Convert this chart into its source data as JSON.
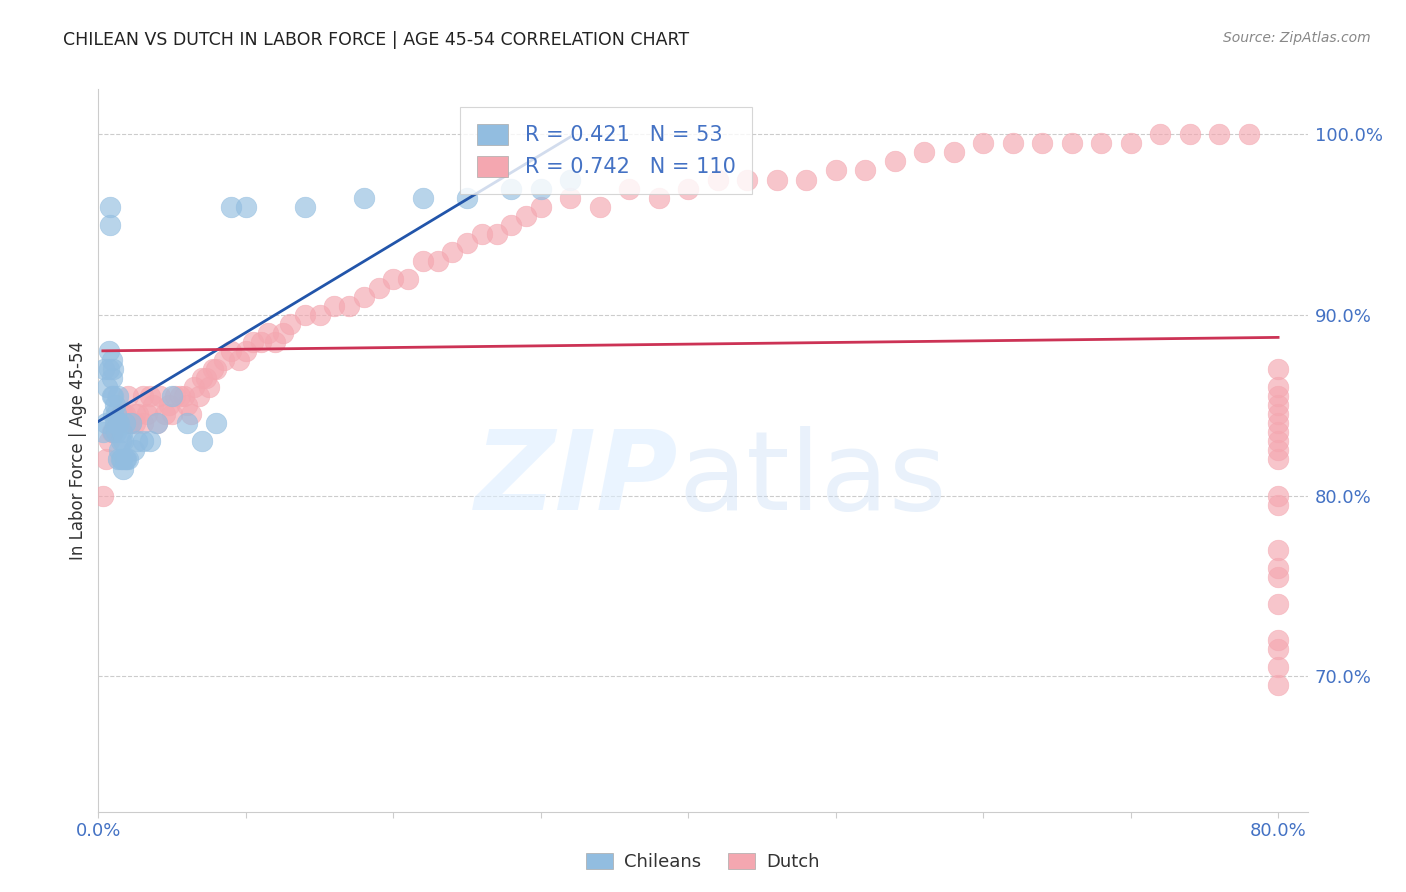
{
  "title": "CHILEAN VS DUTCH IN LABOR FORCE | AGE 45-54 CORRELATION CHART",
  "source": "Source: ZipAtlas.com",
  "ylabel": "In Labor Force | Age 45-54",
  "legend_chileans": "Chileans",
  "legend_dutch": "Dutch",
  "r_chileans": 0.421,
  "n_chileans": 53,
  "r_dutch": 0.742,
  "n_dutch": 110,
  "xlim": [
    0.0,
    0.82
  ],
  "ylim": [
    0.625,
    1.025
  ],
  "yticks_right": [
    0.7,
    0.8,
    0.9,
    1.0
  ],
  "color_chileans": "#92bde0",
  "color_dutch": "#f4a7b0",
  "color_line_chileans": "#2255aa",
  "color_line_dutch": "#cc3355",
  "bg_color": "#ffffff",
  "text_blue": "#4472c4",
  "title_color": "#222222",
  "source_color": "#888888",
  "grid_color": "#cccccc",
  "ch_x": [
    0.003,
    0.004,
    0.005,
    0.006,
    0.007,
    0.007,
    0.008,
    0.008,
    0.009,
    0.009,
    0.009,
    0.01,
    0.01,
    0.01,
    0.01,
    0.011,
    0.011,
    0.012,
    0.012,
    0.013,
    0.013,
    0.013,
    0.014,
    0.014,
    0.015,
    0.015,
    0.016,
    0.016,
    0.017,
    0.017,
    0.018,
    0.018,
    0.019,
    0.02,
    0.022,
    0.024,
    0.026,
    0.03,
    0.035,
    0.04,
    0.05,
    0.06,
    0.07,
    0.08,
    0.09,
    0.1,
    0.14,
    0.18,
    0.22,
    0.25,
    0.28,
    0.3,
    0.32
  ],
  "ch_y": [
    0.835,
    0.87,
    0.84,
    0.86,
    0.87,
    0.88,
    0.95,
    0.96,
    0.855,
    0.865,
    0.875,
    0.835,
    0.845,
    0.855,
    0.87,
    0.84,
    0.85,
    0.835,
    0.845,
    0.82,
    0.84,
    0.855,
    0.825,
    0.84,
    0.82,
    0.83,
    0.82,
    0.835,
    0.815,
    0.83,
    0.82,
    0.84,
    0.82,
    0.82,
    0.84,
    0.825,
    0.83,
    0.83,
    0.83,
    0.84,
    0.855,
    0.84,
    0.83,
    0.84,
    0.96,
    0.96,
    0.96,
    0.965,
    0.965,
    0.965,
    0.97,
    0.97,
    0.975
  ],
  "du_x": [
    0.003,
    0.005,
    0.007,
    0.009,
    0.01,
    0.012,
    0.013,
    0.015,
    0.015,
    0.017,
    0.018,
    0.02,
    0.02,
    0.022,
    0.025,
    0.025,
    0.027,
    0.03,
    0.03,
    0.033,
    0.035,
    0.037,
    0.04,
    0.042,
    0.045,
    0.048,
    0.05,
    0.052,
    0.055,
    0.058,
    0.06,
    0.063,
    0.065,
    0.068,
    0.07,
    0.073,
    0.075,
    0.078,
    0.08,
    0.085,
    0.09,
    0.095,
    0.1,
    0.105,
    0.11,
    0.115,
    0.12,
    0.125,
    0.13,
    0.14,
    0.15,
    0.16,
    0.17,
    0.18,
    0.19,
    0.2,
    0.21,
    0.22,
    0.23,
    0.24,
    0.25,
    0.26,
    0.27,
    0.28,
    0.29,
    0.3,
    0.32,
    0.34,
    0.36,
    0.38,
    0.4,
    0.42,
    0.44,
    0.46,
    0.48,
    0.5,
    0.52,
    0.54,
    0.56,
    0.58,
    0.6,
    0.62,
    0.64,
    0.66,
    0.68,
    0.7,
    0.72,
    0.74,
    0.76,
    0.78,
    0.8,
    0.8,
    0.8,
    0.8,
    0.8,
    0.8,
    0.8,
    0.8,
    0.8,
    0.8,
    0.8,
    0.8,
    0.8,
    0.8,
    0.8,
    0.8,
    0.8,
    0.8,
    0.8,
    0.8
  ],
  "du_y": [
    0.8,
    0.82,
    0.83,
    0.835,
    0.835,
    0.84,
    0.84,
    0.845,
    0.845,
    0.845,
    0.845,
    0.84,
    0.855,
    0.84,
    0.84,
    0.845,
    0.845,
    0.84,
    0.855,
    0.845,
    0.855,
    0.85,
    0.84,
    0.855,
    0.845,
    0.85,
    0.845,
    0.855,
    0.855,
    0.855,
    0.85,
    0.845,
    0.86,
    0.855,
    0.865,
    0.865,
    0.86,
    0.87,
    0.87,
    0.875,
    0.88,
    0.875,
    0.88,
    0.885,
    0.885,
    0.89,
    0.885,
    0.89,
    0.895,
    0.9,
    0.9,
    0.905,
    0.905,
    0.91,
    0.915,
    0.92,
    0.92,
    0.93,
    0.93,
    0.935,
    0.94,
    0.945,
    0.945,
    0.95,
    0.955,
    0.96,
    0.965,
    0.96,
    0.97,
    0.965,
    0.97,
    0.975,
    0.975,
    0.975,
    0.975,
    0.98,
    0.98,
    0.985,
    0.99,
    0.99,
    0.995,
    0.995,
    0.995,
    0.995,
    0.995,
    0.995,
    1.0,
    1.0,
    1.0,
    1.0,
    0.695,
    0.705,
    0.715,
    0.72,
    0.74,
    0.755,
    0.76,
    0.77,
    0.795,
    0.8,
    0.82,
    0.825,
    0.83,
    0.835,
    0.84,
    0.845,
    0.85,
    0.855,
    0.86,
    0.87
  ]
}
